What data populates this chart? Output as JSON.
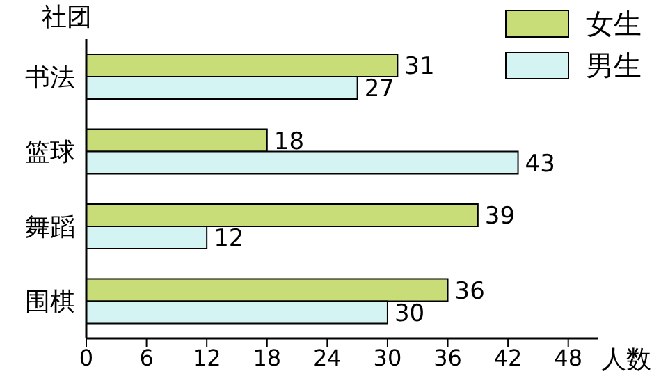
{
  "chart_data": {
    "type": "bar",
    "orientation": "horizontal",
    "categories": [
      "书法",
      "篮球",
      "舞蹈",
      "围棋"
    ],
    "series": [
      {
        "name": "女生",
        "color": "#c8dc78",
        "values": [
          31,
          18,
          39,
          36
        ]
      },
      {
        "name": "男生",
        "color": "#d4f4f4",
        "values": [
          27,
          43,
          12,
          30
        ]
      }
    ],
    "xlim": [
      0,
      51
    ],
    "xticks": [
      0,
      6,
      12,
      18,
      24,
      30,
      36,
      42,
      48
    ],
    "xlabel": "人数",
    "ylabel": "社团",
    "data_labels": true,
    "legend": "top right",
    "grid": false
  }
}
